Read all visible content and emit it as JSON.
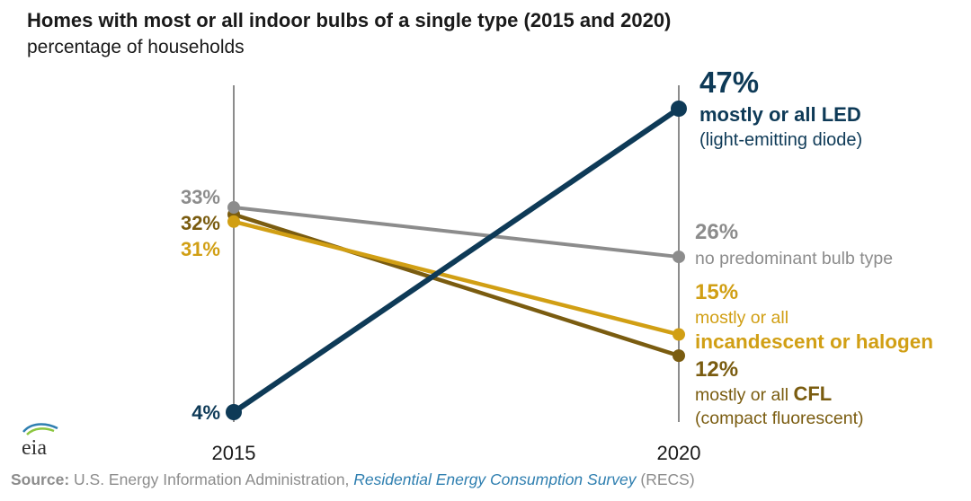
{
  "title": "Homes with most or all indoor bulbs of a single type (2015 and 2020)",
  "subtitle": "percentage of households",
  "source": {
    "label": "Source:",
    "org": "U.S. Energy Information Administration,",
    "survey": "Residential Energy Consumption Survey",
    "abbr": "(RECS)"
  },
  "logo_text": "eia",
  "chart_data": {
    "type": "line",
    "x": [
      "2015",
      "2020"
    ],
    "series": [
      {
        "name": "mostly or all LED",
        "values": [
          4,
          47
        ],
        "color": "#0e3a57",
        "labels": [
          "4%",
          "47%"
        ],
        "desc": [
          "mostly or all LED",
          "(light-emitting diode)"
        ]
      },
      {
        "name": "no predominant bulb type",
        "values": [
          33,
          26
        ],
        "color": "#8c8c8c",
        "labels": [
          "33%",
          "26%"
        ],
        "desc": [
          "no predominant bulb type"
        ]
      },
      {
        "name": "mostly or all incandescent or halogen",
        "values": [
          31,
          15
        ],
        "color": "#d19f14",
        "labels": [
          "31%",
          "15%"
        ],
        "desc": [
          "mostly or all",
          "incandescent or halogen"
        ]
      },
      {
        "name": "mostly or all CFL",
        "values": [
          32,
          12
        ],
        "color": "#7a5c10",
        "labels": [
          "32%",
          "12%"
        ],
        "desc": [
          "mostly or all CFL",
          "(compact fluorescent)"
        ]
      }
    ],
    "ylim": [
      0,
      50
    ],
    "grid": false,
    "legend": "direct labels at right"
  }
}
